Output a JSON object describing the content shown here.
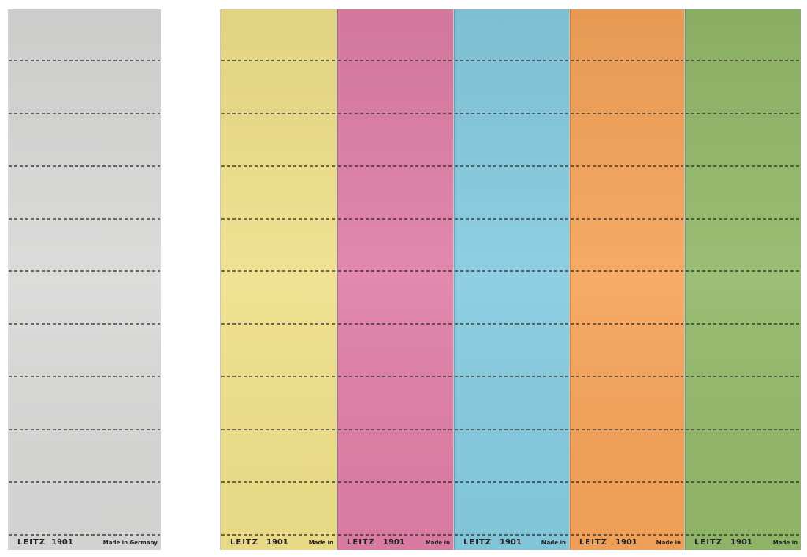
{
  "strips": [
    {
      "brand": "LEITZ",
      "code": "1901",
      "origin": "Made in Germany",
      "color": "#d9dad8"
    },
    {
      "brand": "LEITZ",
      "code": "1901",
      "origin": "Made in",
      "color": "#f0e08a"
    },
    {
      "brand": "LEITZ",
      "code": "1901",
      "origin": "Made in",
      "color": "#e07fa6"
    },
    {
      "brand": "LEITZ",
      "code": "1901",
      "origin": "Made in",
      "color": "#86cbe0"
    },
    {
      "brand": "LEITZ",
      "code": "1901",
      "origin": "Made in",
      "color": "#f6a45a"
    },
    {
      "brand": "LEITZ",
      "code": "1901",
      "origin": "Made in",
      "color": "#93b96a"
    }
  ]
}
